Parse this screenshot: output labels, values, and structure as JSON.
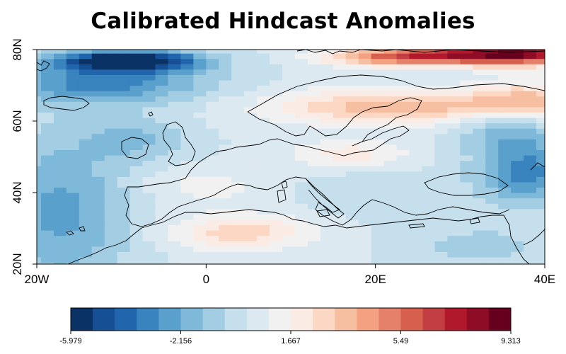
{
  "title": "Calibrated Hindcast Anomalies",
  "map": {
    "projection": "equirectangular",
    "lon_range": [
      -20,
      40
    ],
    "lat_range": [
      20,
      80
    ],
    "coastline_color": "#000000",
    "x_ticks": [
      {
        "value": -20,
        "label": "20W"
      },
      {
        "value": 0,
        "label": "0"
      },
      {
        "value": 20,
        "label": "20E"
      },
      {
        "value": 40,
        "label": "40E"
      }
    ],
    "y_ticks": [
      {
        "value": 20,
        "label": "20N"
      },
      {
        "value": 40,
        "label": "40N"
      },
      {
        "value": 60,
        "label": "60N"
      },
      {
        "value": 80,
        "label": "80N"
      }
    ]
  },
  "colorbar": {
    "labels": [
      "-5.979",
      "-2.156",
      "1.667",
      "5.49",
      "9.313"
    ],
    "colors": [
      "#0b3264",
      "#164f94",
      "#2166ac",
      "#3983be",
      "#5aa0cc",
      "#7fb9da",
      "#a3cde3",
      "#c5dfec",
      "#dde9f1",
      "#f1f1f1",
      "#faece5",
      "#fbd7c4",
      "#f7bfa2",
      "#f3a180",
      "#e5806a",
      "#d6604d",
      "#c23e42",
      "#b2182b",
      "#8e0c25",
      "#67001f"
    ]
  },
  "chart_data": {
    "type": "heatmap",
    "title": "Calibrated Hindcast Anomalies",
    "xlabel": "",
    "ylabel": "",
    "x_range": [
      -20,
      40
    ],
    "y_range": [
      20,
      80
    ],
    "x_tick_labels": [
      "20W",
      "0",
      "20E",
      "40E"
    ],
    "y_tick_labels": [
      "20N",
      "40N",
      "60N",
      "80N"
    ],
    "colorbar_range": [
      -5.979,
      9.313
    ],
    "colorbar_ticks": [
      -5.979,
      -2.156,
      1.667,
      5.49,
      9.313
    ],
    "regions": [
      {
        "lon": [
          -18,
          0
        ],
        "lat": [
          74,
          80
        ],
        "value": -5.5
      },
      {
        "lon": [
          -20,
          -5
        ],
        "lat": [
          70,
          80
        ],
        "value": -3.5
      },
      {
        "lon": [
          -20,
          0
        ],
        "lat": [
          20,
          50
        ],
        "value": -2.0
      },
      {
        "lon": [
          10,
          35
        ],
        "lat": [
          60,
          70
        ],
        "value": 3.0
      },
      {
        "lon": [
          25,
          40
        ],
        "lat": [
          74,
          80
        ],
        "value": 8.0
      },
      {
        "lon": [
          28,
          40
        ],
        "lat": [
          40,
          55
        ],
        "value": -3.0
      },
      {
        "lon": [
          0,
          10
        ],
        "lat": [
          25,
          35
        ],
        "value": 3.0
      },
      {
        "lon": [
          10,
          22
        ],
        "lat": [
          45,
          55
        ],
        "value": 2.5
      }
    ]
  }
}
